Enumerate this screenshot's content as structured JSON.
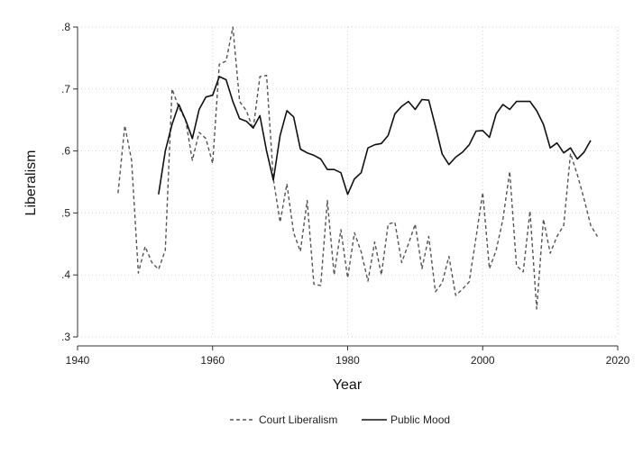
{
  "chart_data": {
    "type": "line",
    "xlabel": "Year",
    "ylabel": "Liberalism",
    "xlim": [
      1940,
      2020
    ],
    "ylim": [
      0.3,
      0.8
    ],
    "xticks": [
      1940,
      1960,
      1980,
      2000,
      2020
    ],
    "yticks": [
      0.3,
      0.4,
      0.5,
      0.6,
      0.7,
      0.8
    ],
    "xtick_labels": [
      "1940",
      "1960",
      "1980",
      "2000",
      "2020"
    ],
    "ytick_labels": [
      ".3",
      ".4",
      ".5",
      ".6",
      ".7",
      ".8"
    ],
    "grid": "dotted",
    "legend": "bottom",
    "series": [
      {
        "name": "Court Liberalism",
        "style": "dashed",
        "color": "#555555",
        "x": [
          1946,
          1947,
          1948,
          1949,
          1950,
          1951,
          1952,
          1953,
          1954,
          1955,
          1956,
          1957,
          1958,
          1959,
          1960,
          1961,
          1962,
          1963,
          1964,
          1965,
          1966,
          1967,
          1968,
          1969,
          1970,
          1971,
          1972,
          1973,
          1974,
          1975,
          1976,
          1977,
          1978,
          1979,
          1980,
          1981,
          1982,
          1983,
          1984,
          1985,
          1986,
          1987,
          1988,
          1989,
          1990,
          1991,
          1992,
          1993,
          1994,
          1995,
          1996,
          1997,
          1998,
          1999,
          2000,
          2001,
          2002,
          2003,
          2004,
          2005,
          2006,
          2007,
          2008,
          2009,
          2010,
          2011,
          2012,
          2013,
          2014,
          2015,
          2016,
          2017
        ],
        "y": [
          0.532,
          0.641,
          0.585,
          0.403,
          0.446,
          0.42,
          0.409,
          0.44,
          0.7,
          0.67,
          0.65,
          0.585,
          0.63,
          0.62,
          0.58,
          0.74,
          0.745,
          0.8,
          0.68,
          0.665,
          0.635,
          0.72,
          0.722,
          0.555,
          0.485,
          0.547,
          0.468,
          0.438,
          0.52,
          0.385,
          0.383,
          0.52,
          0.4,
          0.473,
          0.395,
          0.468,
          0.437,
          0.39,
          0.453,
          0.4,
          0.482,
          0.485,
          0.42,
          0.45,
          0.482,
          0.41,
          0.462,
          0.373,
          0.387,
          0.43,
          0.367,
          0.377,
          0.389,
          0.46,
          0.533,
          0.41,
          0.44,
          0.49,
          0.567,
          0.415,
          0.405,
          0.503,
          0.345,
          0.49,
          0.435,
          0.462,
          0.48,
          0.596,
          0.562,
          0.523,
          0.48,
          0.462
        ]
      },
      {
        "name": "Public Mood",
        "style": "solid",
        "color": "#111111",
        "x": [
          1952,
          1953,
          1954,
          1955,
          1956,
          1957,
          1958,
          1959,
          1960,
          1961,
          1962,
          1963,
          1964,
          1965,
          1966,
          1967,
          1968,
          1969,
          1970,
          1971,
          1972,
          1973,
          1974,
          1975,
          1976,
          1977,
          1978,
          1979,
          1980,
          1981,
          1982,
          1983,
          1984,
          1985,
          1986,
          1987,
          1988,
          1989,
          1990,
          1991,
          1992,
          1993,
          1994,
          1995,
          1996,
          1997,
          1998,
          1999,
          2000,
          2001,
          2002,
          2003,
          2004,
          2005,
          2006,
          2007,
          2008,
          2009,
          2010,
          2011,
          2012,
          2013,
          2014,
          2015,
          2016
        ],
        "y": [
          0.53,
          0.6,
          0.643,
          0.675,
          0.65,
          0.62,
          0.667,
          0.687,
          0.69,
          0.72,
          0.715,
          0.68,
          0.652,
          0.648,
          0.637,
          0.657,
          0.6,
          0.553,
          0.625,
          0.665,
          0.655,
          0.603,
          0.597,
          0.593,
          0.587,
          0.57,
          0.57,
          0.565,
          0.53,
          0.555,
          0.565,
          0.605,
          0.61,
          0.612,
          0.625,
          0.66,
          0.672,
          0.68,
          0.667,
          0.683,
          0.682,
          0.64,
          0.595,
          0.578,
          0.59,
          0.598,
          0.61,
          0.632,
          0.633,
          0.622,
          0.66,
          0.675,
          0.667,
          0.68,
          0.68,
          0.68,
          0.665,
          0.643,
          0.605,
          0.613,
          0.597,
          0.605,
          0.587,
          0.598,
          0.617
        ]
      }
    ]
  }
}
